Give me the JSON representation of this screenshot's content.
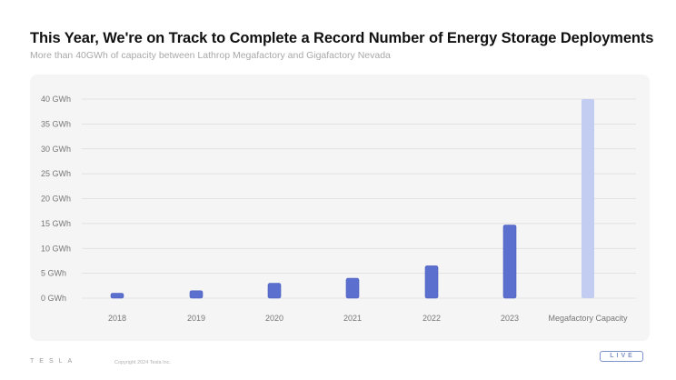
{
  "header": {
    "title": "This Year, We're on Track to Complete a Record Number of Energy Storage Deployments",
    "subtitle": "More than 40GWh of capacity between Lathrop Megafactory and Gigafactory Nevada"
  },
  "footer": {
    "brand": "TESLA",
    "copyright": "Copyright 2024 Tesla Inc.",
    "live_badge": "LIVE"
  },
  "colors": {
    "bar": "#5b6fcf",
    "bar_stroke": "#4c5fbf",
    "capacity_bar": "#c3cdf1",
    "grid": "#dcdcdc"
  },
  "chart_data": {
    "type": "bar",
    "title": "This Year, We're on Track to Complete a Record Number of Energy Storage Deployments",
    "subtitle": "More than 40GWh of capacity between Lathrop Megafactory and Gigafactory Nevada",
    "categories": [
      "2018",
      "2019",
      "2020",
      "2021",
      "2022",
      "2023",
      "Megafactory Capacity"
    ],
    "values": [
      1.0,
      1.5,
      3.0,
      4.0,
      6.5,
      14.7,
      40.0
    ],
    "unit": "GWh",
    "ylim": [
      0,
      40
    ],
    "yticks": [
      0,
      5,
      10,
      15,
      20,
      25,
      30,
      35,
      40
    ],
    "ytick_labels": [
      "0 GWh",
      "5 GWh",
      "10 GWh",
      "15 GWh",
      "20 GWh",
      "25 GWh",
      "30 GWh",
      "35 GWh",
      "40 GWh"
    ],
    "grid": true,
    "legend": "none",
    "xlabel": "",
    "ylabel": ""
  }
}
